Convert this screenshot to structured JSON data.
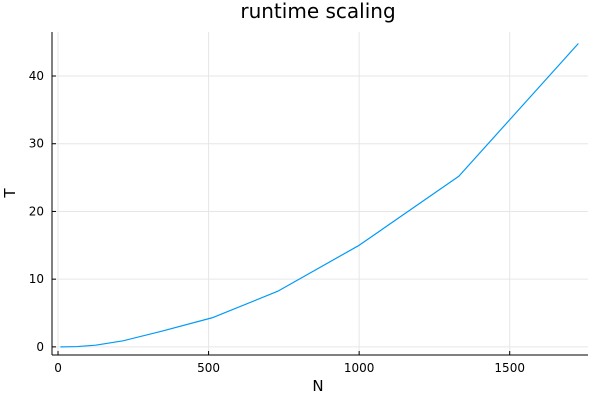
{
  "chart_data": {
    "type": "line",
    "title": "runtime scaling",
    "xlabel": "N",
    "ylabel": "T",
    "xlim": [
      -20,
      1760
    ],
    "ylim": [
      -1.2,
      46.5
    ],
    "xticks": [
      0,
      500,
      1000,
      1500
    ],
    "yticks": [
      0,
      10,
      20,
      30,
      40
    ],
    "grid": true,
    "legend": "none",
    "series": [
      {
        "color": "#009af9",
        "x": [
          8,
          27,
          64,
          125,
          216,
          343,
          512,
          729,
          1000,
          1331,
          1728
        ],
        "y": [
          0.0,
          0.01,
          0.05,
          0.25,
          0.9,
          2.3,
          4.3,
          8.2,
          15.0,
          25.2,
          44.8
        ]
      }
    ]
  }
}
